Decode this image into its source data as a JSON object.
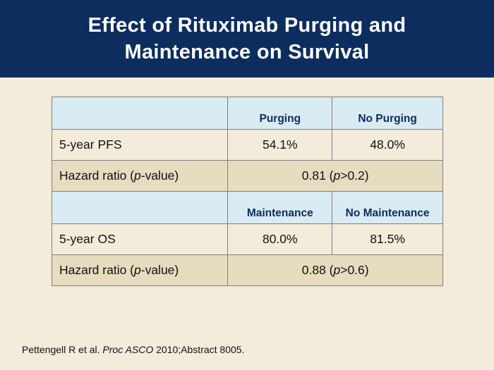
{
  "title": {
    "line1": "Effect of Rituximab Purging and",
    "line2": "Maintenance on Survival"
  },
  "table": {
    "section1": {
      "col1": "Purging",
      "col2": "No Purging",
      "pfs_label": "5-year PFS",
      "pfs_col1": "54.1%",
      "pfs_col2": "48.0%",
      "hr_label_pre": "Hazard ratio (",
      "hr_label_italic": "p",
      "hr_label_post": "-value)",
      "hr_value_pre": "0.81 (",
      "hr_value_italic": "p",
      "hr_value_post": ">0.2)"
    },
    "section2": {
      "col1": "Maintenance",
      "col2": "No Maintenance",
      "os_label": "5-year OS",
      "os_col1": "80.0%",
      "os_col2": "81.5%",
      "hr_label_pre": "Hazard ratio (",
      "hr_label_italic": "p",
      "hr_label_post": "-value)",
      "hr_value_pre": "0.88 (",
      "hr_value_italic": "p",
      "hr_value_post": ">0.6)"
    }
  },
  "footnote": {
    "pre": "Pettengell R et al. ",
    "italic": "Proc ASCO",
    "post": " 2010;Abstract 8005."
  }
}
